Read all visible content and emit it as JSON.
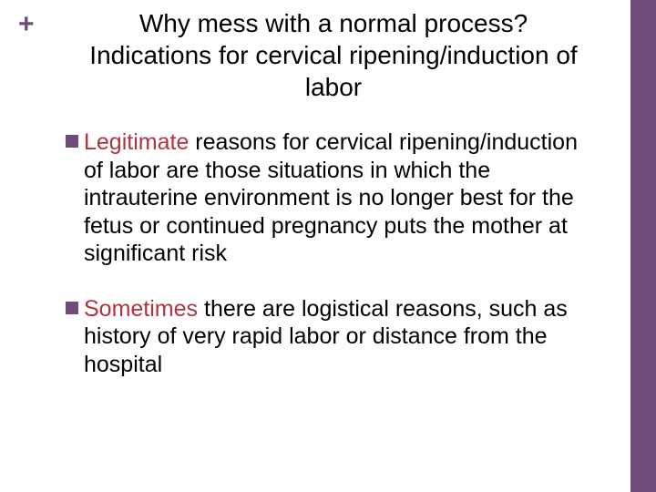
{
  "colors": {
    "accent": "#6f4b7a",
    "lead_text": "#b23242",
    "body_text": "#000000",
    "bullet_square": "#6f4b7a",
    "plus": "#6f4b7a",
    "background": "#ffffff"
  },
  "title": {
    "line1": "Why mess with a normal process?",
    "line2": "Indications for cervical ripening/induction of",
    "line3": "labor",
    "fontsize": 28
  },
  "plus_symbol": "+",
  "bullets": [
    {
      "lead": "Legitimate",
      "rest": " reasons for cervical ripening/induction of labor are those situations in which the intrauterine environment is no longer best for the fetus or continued pregnancy puts the mother at significant risk"
    },
    {
      "lead": "Sometimes",
      "rest": " there are logistical reasons, such as history of very rapid labor or distance from the hospital"
    }
  ],
  "body_fontsize": 25
}
